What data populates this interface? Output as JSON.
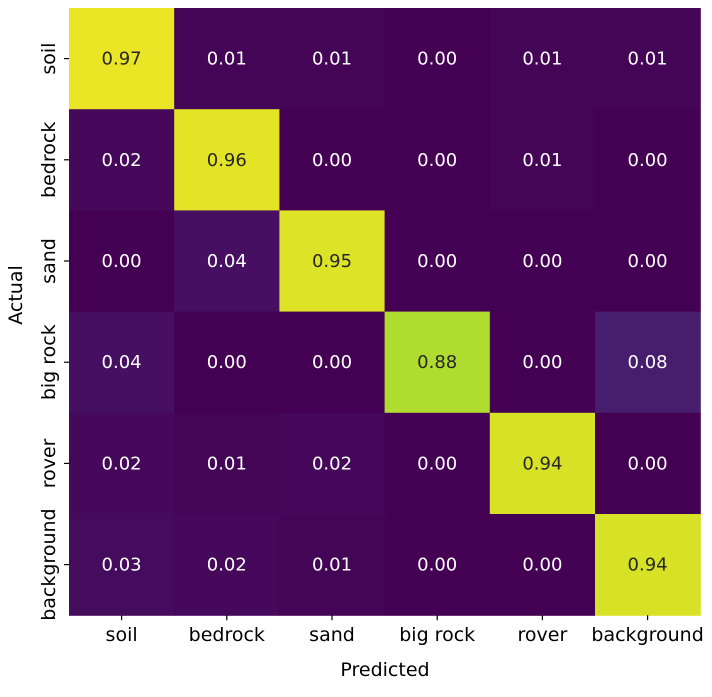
{
  "chart_data": {
    "type": "heatmap",
    "xlabel": "Predicted",
    "ylabel": "Actual",
    "x_categories": [
      "soil",
      "bedrock",
      "sand",
      "big rock",
      "rover",
      "background"
    ],
    "y_categories": [
      "soil",
      "bedrock",
      "sand",
      "big rock",
      "rover",
      "background"
    ],
    "values": [
      [
        0.97,
        0.01,
        0.01,
        0.0,
        0.01,
        0.01
      ],
      [
        0.02,
        0.96,
        0.0,
        0.0,
        0.01,
        0.0
      ],
      [
        0.0,
        0.04,
        0.95,
        0.0,
        0.0,
        0.0
      ],
      [
        0.04,
        0.0,
        0.0,
        0.88,
        0.0,
        0.08
      ],
      [
        0.02,
        0.01,
        0.02,
        0.0,
        0.94,
        0.0
      ],
      [
        0.03,
        0.02,
        0.01,
        0.0,
        0.0,
        0.94
      ]
    ],
    "value_range": [
      0,
      1
    ],
    "colormap": "viridis",
    "annotation_format": "0.00",
    "colorbar": false,
    "grid": false
  }
}
